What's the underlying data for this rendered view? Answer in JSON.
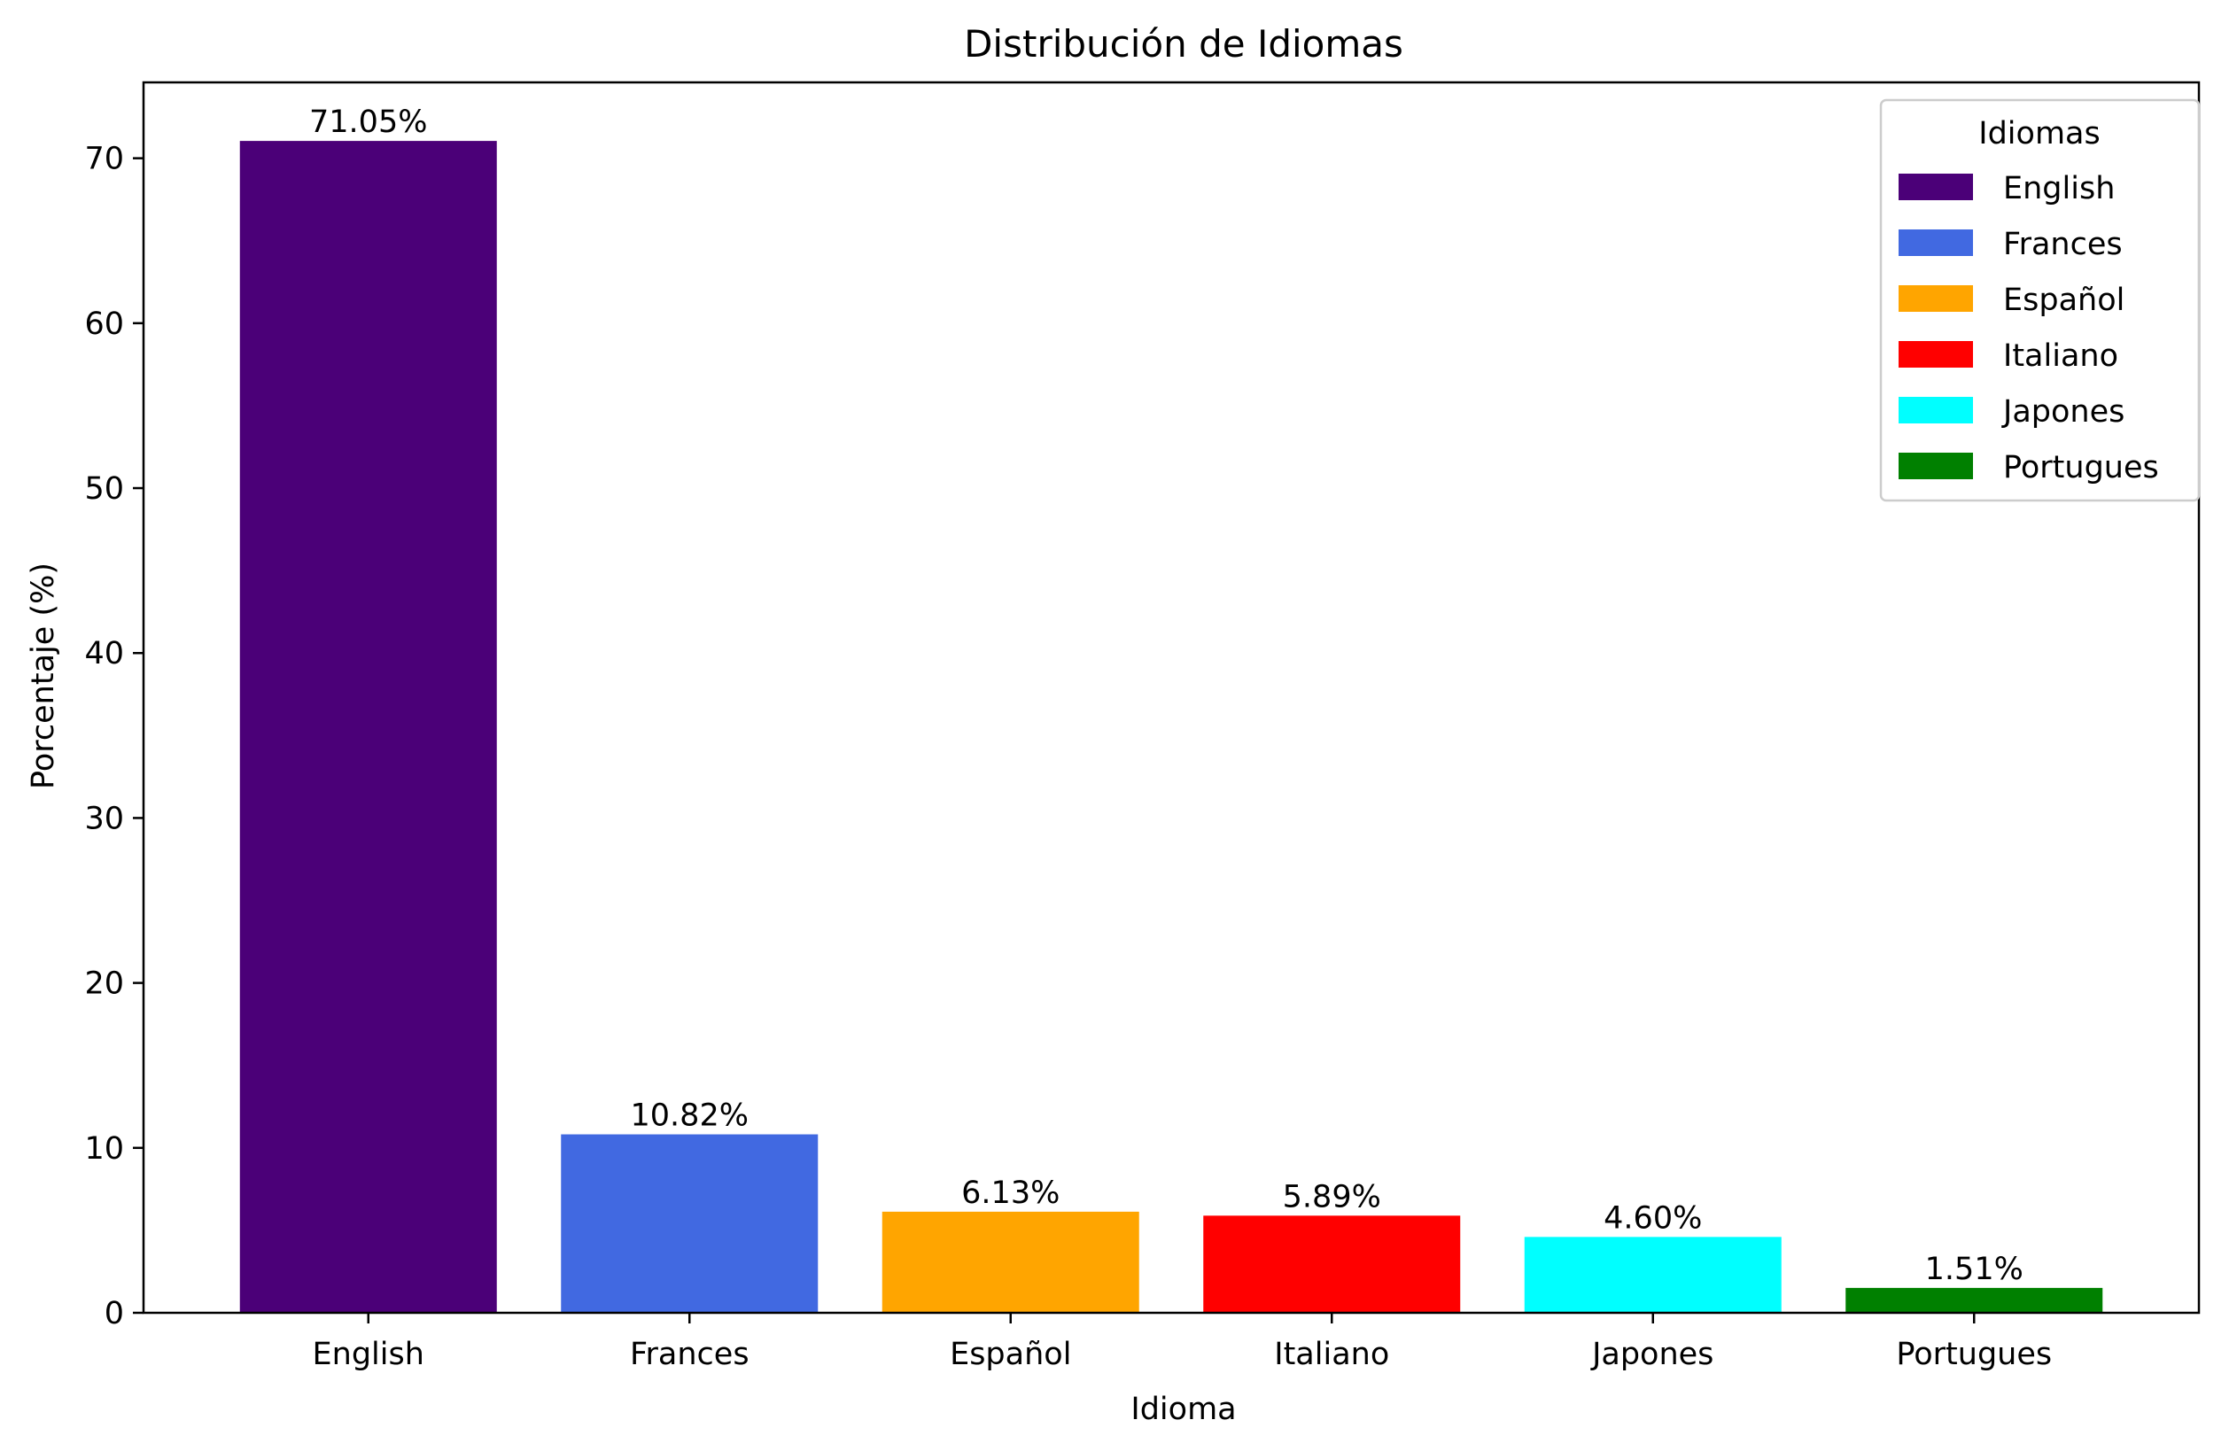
{
  "chart_data": {
    "type": "bar",
    "title": "Distribución de Idiomas",
    "xlabel": "Idioma",
    "ylabel": "Porcentaje (%)",
    "categories": [
      "English",
      "Frances",
      "Español",
      "Italiano",
      "Japones",
      "Portugues"
    ],
    "values": [
      71.05,
      10.82,
      6.13,
      5.89,
      4.6,
      1.51
    ],
    "data_labels": [
      "71.05%",
      "10.82%",
      "6.13%",
      "5.89%",
      "4.60%",
      "1.51%"
    ],
    "colors": [
      "#4b0078",
      "#4169e1",
      "#ffa500",
      "#ff0000",
      "#00ffff",
      "#008000"
    ],
    "ylim": [
      0,
      74.6
    ],
    "yticks": [
      0,
      10,
      20,
      30,
      40,
      50,
      60,
      70
    ],
    "grid": false,
    "legend": {
      "title": "Idiomas",
      "placement": "top-right",
      "entries": [
        "English",
        "Frances",
        "Español",
        "Italiano",
        "Japones",
        "Portugues"
      ]
    }
  }
}
